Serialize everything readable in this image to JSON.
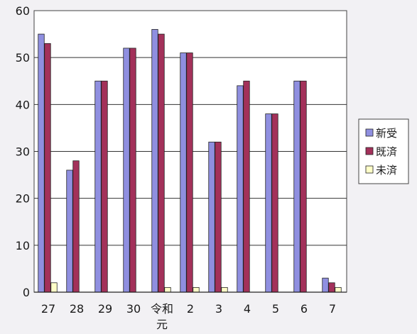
{
  "chart_data": {
    "type": "bar",
    "categories": [
      "27",
      "28",
      "29",
      "30",
      "令和\n元",
      "2",
      "3",
      "4",
      "5",
      "6",
      "7"
    ],
    "series": [
      {
        "name": "新受",
        "color": "#8f8fe0",
        "values": [
          55,
          26,
          45,
          52,
          56,
          51,
          32,
          44,
          38,
          45,
          3
        ]
      },
      {
        "name": "既済",
        "color": "#a3315a",
        "values": [
          53,
          28,
          45,
          52,
          55,
          51,
          32,
          45,
          38,
          45,
          2
        ]
      },
      {
        "name": "未済",
        "color": "#ffffc8",
        "values": [
          2,
          0,
          0,
          0,
          1,
          1,
          1,
          0,
          0,
          0,
          1
        ]
      }
    ],
    "ylim": [
      0,
      60
    ],
    "yticks": [
      0,
      10,
      20,
      30,
      40,
      50,
      60
    ],
    "grid": true,
    "legend": "right",
    "title": "",
    "xlabel": "",
    "ylabel": ""
  }
}
